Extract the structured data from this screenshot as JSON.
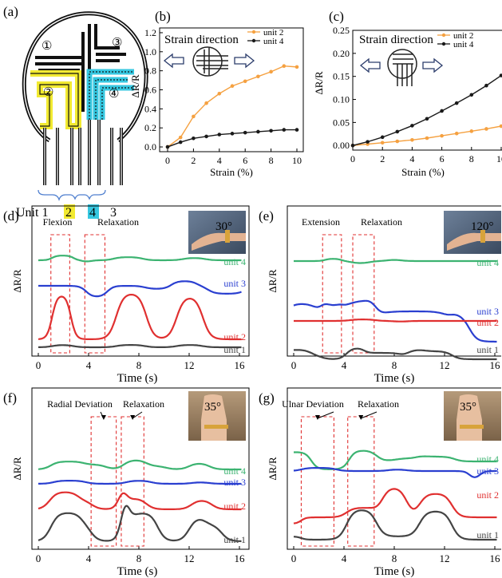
{
  "panel_a": {
    "label": "(a)",
    "unit_numbers": [
      "①",
      "②",
      "③",
      "④"
    ],
    "bottom_text": {
      "prefix": "Unit 1",
      "u2": "2",
      "u4": "4",
      "u3": "3"
    },
    "colors": {
      "unit2": "#f2ea31",
      "unit4": "#36c7e0",
      "outline": "#000000"
    }
  },
  "chart_data": [
    {
      "id": "b",
      "type": "line",
      "panel_label": "(b)",
      "annotation": "Strain direction",
      "xlabel": "Strain (%)",
      "ylabel": "ΔR/R",
      "xlim": [
        0,
        10
      ],
      "ylim": [
        -0.05,
        1.25
      ],
      "xticks": [
        0,
        2,
        4,
        6,
        8,
        10
      ],
      "yticks": [
        0.0,
        0.2,
        0.4,
        0.6,
        0.8,
        1.0,
        1.2
      ],
      "ytick_labels": [
        "0.0",
        "0.2",
        "0.4",
        "0.6",
        "0.8",
        "1.0",
        "1.2"
      ],
      "x": [
        0,
        1,
        2,
        3,
        4,
        5,
        6,
        7,
        8,
        9,
        10
      ],
      "series": [
        {
          "name": "unit 2",
          "color": "#f5a141",
          "values": [
            0.0,
            0.1,
            0.32,
            0.46,
            0.56,
            0.64,
            0.69,
            0.74,
            0.79,
            0.85,
            0.84
          ]
        },
        {
          "name": "unit 4",
          "color": "#1a1a1a",
          "values": [
            0.0,
            0.05,
            0.09,
            0.11,
            0.13,
            0.14,
            0.15,
            0.16,
            0.17,
            0.18,
            0.18
          ]
        }
      ],
      "legend": "top-right"
    },
    {
      "id": "c",
      "type": "line",
      "panel_label": "(c)",
      "annotation": "Strain direction",
      "xlabel": "Strain (%)",
      "ylabel": "ΔR/R",
      "xlim": [
        0,
        10
      ],
      "ylim": [
        -0.01,
        0.25
      ],
      "xticks": [
        0,
        2,
        4,
        6,
        8,
        10
      ],
      "xtick_labels": [
        "0",
        "2",
        "4",
        "6",
        "8",
        "10"
      ],
      "yticks": [
        0.0,
        0.05,
        0.1,
        0.15,
        0.2,
        0.25
      ],
      "ytick_labels": [
        "0.00",
        "0.05",
        "0.10",
        "0.15",
        "0.20",
        "0.25"
      ],
      "x": [
        0,
        1,
        2,
        3,
        4,
        5,
        6,
        7,
        8,
        9,
        10
      ],
      "series": [
        {
          "name": "unit 2",
          "color": "#f5a141",
          "values": [
            0.0,
            0.003,
            0.006,
            0.009,
            0.012,
            0.016,
            0.021,
            0.026,
            0.031,
            0.036,
            0.042
          ]
        },
        {
          "name": "unit 4",
          "color": "#1a1a1a",
          "values": [
            0.0,
            0.008,
            0.018,
            0.03,
            0.043,
            0.058,
            0.075,
            0.092,
            0.11,
            0.13,
            0.152
          ]
        }
      ],
      "legend": "top-right"
    },
    {
      "id": "d",
      "type": "line",
      "panel_label": "(d)",
      "xlabel": "Time (s)",
      "ylabel": "ΔR/R",
      "xlim": [
        0,
        16
      ],
      "xticks": [
        0,
        4,
        8,
        12,
        16
      ],
      "annotations": [
        "Flexion",
        "Relaxation"
      ],
      "photo_angle": "30°",
      "boxes": [
        [
          1.0,
          2.5
        ],
        [
          3.7,
          5.3
        ]
      ],
      "series": [
        {
          "name": "unit 4",
          "color": "#3cb371"
        },
        {
          "name": "unit 3",
          "color": "#2a3fd0"
        },
        {
          "name": "unit 2",
          "color": "#e03030"
        },
        {
          "name": "unit 1",
          "color": "#444444"
        }
      ]
    },
    {
      "id": "e",
      "type": "line",
      "panel_label": "(e)",
      "xlabel": "Time (s)",
      "ylabel": "ΔR/R",
      "xlim": [
        0,
        16
      ],
      "xticks": [
        0,
        4,
        8,
        12,
        16
      ],
      "annotations": [
        "Extension",
        "Relaxation"
      ],
      "photo_angle": "120°",
      "boxes": [
        [
          2.3,
          3.8
        ],
        [
          4.7,
          6.4
        ]
      ],
      "series": [
        {
          "name": "unit 4",
          "color": "#3cb371"
        },
        {
          "name": "unit 3",
          "color": "#2a3fd0"
        },
        {
          "name": "unit 2",
          "color": "#e03030"
        },
        {
          "name": "unit 1",
          "color": "#444444"
        }
      ]
    },
    {
      "id": "f",
      "type": "line",
      "panel_label": "(f)",
      "xlabel": "Time (s)",
      "ylabel": "ΔR/R",
      "xlim": [
        0,
        16
      ],
      "xticks": [
        0,
        4,
        8,
        12,
        16
      ],
      "annotations": [
        "Radial Deviation",
        "Relaxation"
      ],
      "photo_angle": "35°",
      "boxes": [
        [
          4.2,
          6.2
        ],
        [
          6.6,
          8.4
        ]
      ],
      "series": [
        {
          "name": "unit 4",
          "color": "#3cb371"
        },
        {
          "name": "unit 3",
          "color": "#2a3fd0"
        },
        {
          "name": "unit 2",
          "color": "#e03030"
        },
        {
          "name": "unit 1",
          "color": "#444444"
        }
      ]
    },
    {
      "id": "g",
      "type": "line",
      "panel_label": "(g)",
      "xlabel": "Time (s)",
      "ylabel": "ΔR/R",
      "xlim": [
        0,
        16
      ],
      "xticks": [
        0,
        4,
        8,
        12,
        16
      ],
      "annotations": [
        "Ulnar Deviation",
        "Relaxation"
      ],
      "photo_angle": "35°",
      "boxes": [
        [
          0.6,
          3.2
        ],
        [
          4.3,
          6.4
        ]
      ],
      "series": [
        {
          "name": "unit 4",
          "color": "#3cb371"
        },
        {
          "name": "unit 3",
          "color": "#2a3fd0"
        },
        {
          "name": "unit 2",
          "color": "#e03030"
        },
        {
          "name": "unit 1",
          "color": "#444444"
        }
      ]
    }
  ]
}
